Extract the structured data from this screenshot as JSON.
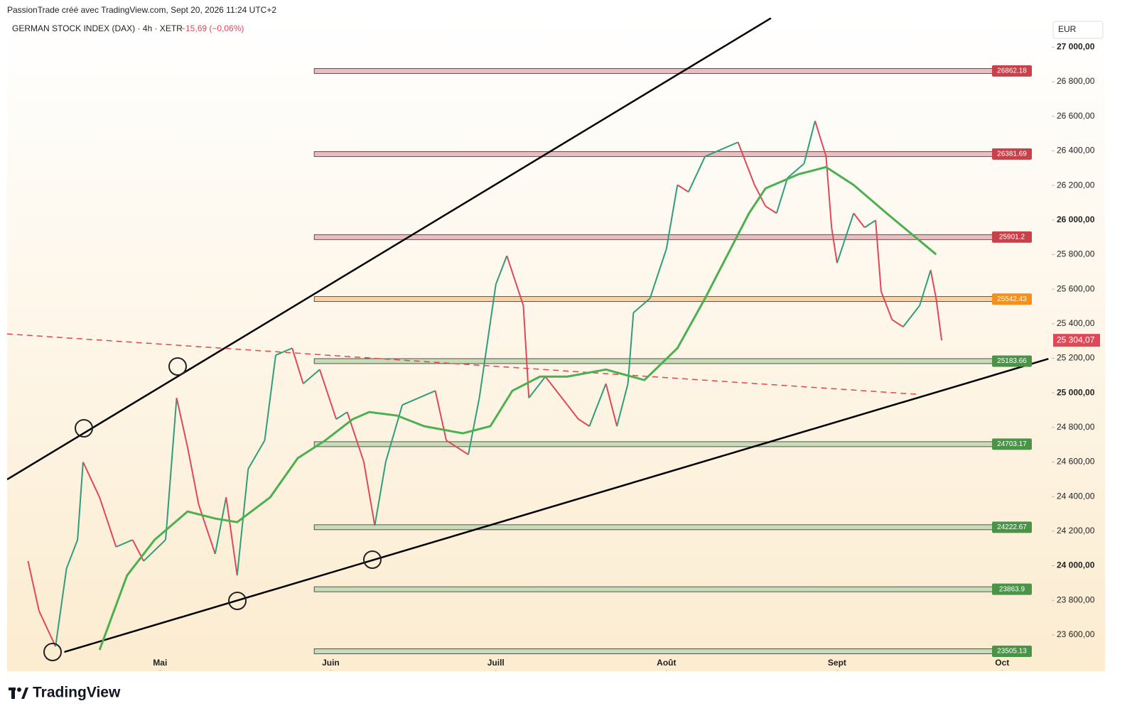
{
  "header": {
    "credit": "PassionTrade créé avec TradingView.com, Sept 20, 2026 11:24 UTC+2",
    "brand": "TradingView"
  },
  "chart_data": {
    "type": "line",
    "title": "GERMAN STOCK INDEX (DAX) · 4h · XETR",
    "change": "−15,69 (−0,06%)",
    "currency": "EUR",
    "xlim": [
      93.2,
      283.0
    ],
    "xticks": [
      {
        "value": 121,
        "label": "Mai"
      },
      {
        "value": 152,
        "label": "Juin"
      },
      {
        "value": 182,
        "label": "Juill"
      },
      {
        "value": 213,
        "label": "Août"
      },
      {
        "value": 244,
        "label": "Sept"
      },
      {
        "value": 274,
        "label": "Oct"
      }
    ],
    "ylim": [
      23390,
      27170
    ],
    "yticks": [
      {
        "value": 23600,
        "label": "23 600,00"
      },
      {
        "value": 23800,
        "label": "23 800,00"
      },
      {
        "value": 24000,
        "label": "24 000,00"
      },
      {
        "value": 24200,
        "label": "24 200,00"
      },
      {
        "value": 24400,
        "label": "24 400,00"
      },
      {
        "value": 24600,
        "label": "24 600,00"
      },
      {
        "value": 24800,
        "label": "24 800,00"
      },
      {
        "value": 25000,
        "label": "25 000,00"
      },
      {
        "value": 25200,
        "label": "25 200,00"
      },
      {
        "value": 25400,
        "label": "25 400,00"
      },
      {
        "value": 25600,
        "label": "25 600,00"
      },
      {
        "value": 25800,
        "label": "25 800,00"
      },
      {
        "value": 26000,
        "label": "26 000,00"
      },
      {
        "value": 26200,
        "label": "26 200,00"
      },
      {
        "value": 26400,
        "label": "26 400,00"
      },
      {
        "value": 26600,
        "label": "26 600,00"
      },
      {
        "value": 26800,
        "label": "26 800,00"
      },
      {
        "value": 27000,
        "label": "27 000,00"
      }
    ],
    "last_price_label": "25 304,07",
    "series": [
      {
        "up_color": "#2e9e7a",
        "down_color": "#e04858",
        "x": [
          97,
          99,
          102,
          104,
          106,
          107,
          110,
          113,
          116,
          118,
          122,
          124,
          126,
          128,
          131,
          133,
          135,
          137,
          140,
          142,
          145,
          147,
          150,
          153,
          155,
          158,
          160,
          162,
          165,
          168,
          171,
          173,
          177,
          179,
          182,
          184,
          187,
          188,
          191,
          194,
          197,
          199,
          202,
          204,
          206,
          207,
          210,
          213,
          215,
          217,
          220,
          223,
          226,
          229,
          231,
          233,
          235,
          238,
          240,
          242,
          243,
          244,
          247,
          249,
          251,
          252,
          254,
          256,
          259,
          261,
          262,
          263
        ],
        "values": [
          24027,
          23739,
          23533,
          23985,
          24150,
          24600,
          24396,
          24109,
          24150,
          24027,
          24150,
          24971,
          24684,
          24355,
          24068,
          24396,
          23944,
          24560,
          24725,
          25218,
          25259,
          25053,
          25135,
          24848,
          24889,
          24602,
          24232,
          24602,
          24930,
          24971,
          25012,
          24725,
          24643,
          24971,
          25628,
          25793,
          25505,
          24971,
          25094,
          24971,
          24848,
          24807,
          25053,
          24807,
          25053,
          25464,
          25546,
          25834,
          26203,
          26162,
          26367,
          26409,
          26450,
          26203,
          26080,
          26039,
          26244,
          26326,
          26573,
          26368,
          25957,
          25751,
          26039,
          25957,
          25998,
          25587,
          25423,
          25382,
          25505,
          25710,
          25546,
          25304.07
        ]
      },
      {
        "color": "#4caf50",
        "x": [
          110,
          115,
          120,
          126,
          131,
          135,
          141,
          146,
          151,
          156,
          159,
          164,
          169,
          176,
          181,
          185,
          190,
          195,
          202,
          209,
          215,
          220,
          224,
          228,
          231,
          237,
          242,
          247,
          253,
          260,
          262
        ],
        "values": [
          23513,
          23944,
          24150,
          24314,
          24273,
          24252,
          24396,
          24622,
          24725,
          24848,
          24889,
          24869,
          24807,
          24766,
          24807,
          25012,
          25094,
          25094,
          25135,
          25074,
          25259,
          25546,
          25793,
          26039,
          26183,
          26265,
          26306,
          26203,
          26039,
          25854,
          25801
        ]
      }
    ],
    "levels_x_start": 149,
    "levels": [
      {
        "value": 26862.18,
        "color": "#c8404a",
        "fill": "#ecbcc0"
      },
      {
        "value": 26381.69,
        "color": "#c8404a",
        "fill": "#ecbcc0"
      },
      {
        "value": 25901.2,
        "color": "#c8404a",
        "fill": "#ecbcc0"
      },
      {
        "value": 25542.43,
        "color": "#f5901e",
        "fill": "#f9d3a8"
      },
      {
        "value": 25183.66,
        "color": "#4a9448",
        "fill": "#c8dcb8"
      },
      {
        "value": 24703.17,
        "color": "#4a9448",
        "fill": "#c8dcb8"
      },
      {
        "value": 24222.67,
        "color": "#4a9448",
        "fill": "#c8dcb8"
      },
      {
        "value": 23863.9,
        "color": "#4a9448",
        "fill": "#c8dcb8"
      },
      {
        "value": 23505.13,
        "color": "#4a9448",
        "fill": "#c8dcb8"
      }
    ],
    "trendlines": [
      {
        "x": [
          93.2,
          232.0
        ],
        "values": [
          24499,
          27168
        ],
        "color": "#000000",
        "dashed": false
      },
      {
        "x": [
          103.6,
          282.4
        ],
        "values": [
          23501,
          25197
        ],
        "color": "#000000",
        "dashed": false
      },
      {
        "x": [
          93.2,
          258.5
        ],
        "values": [
          25341,
          24992
        ],
        "color": "#e04848",
        "dashed": true
      }
    ]
  }
}
